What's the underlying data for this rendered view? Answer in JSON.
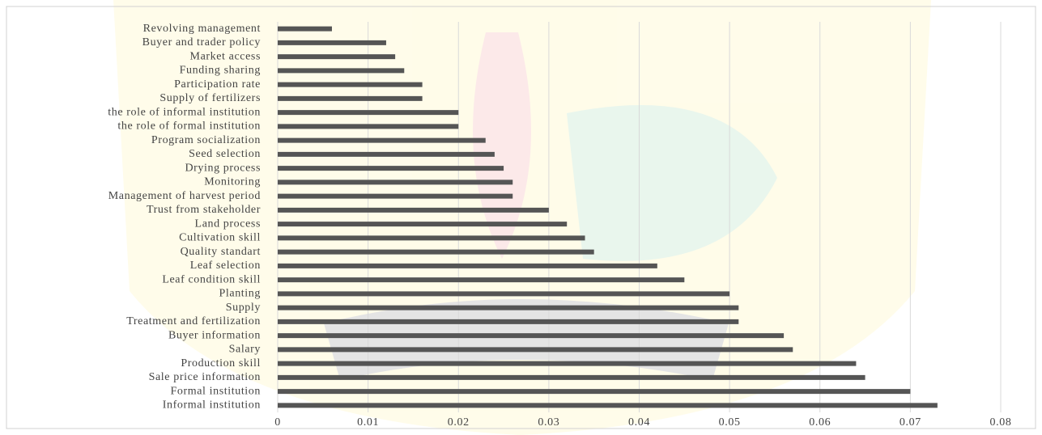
{
  "chart_data": {
    "type": "bar",
    "orientation": "horizontal",
    "categories": [
      "Revolving management",
      "Buyer and trader policy",
      "Market access",
      "Funding sharing",
      "Participation rate",
      "Supply of fertilizers",
      "the role of informal institution",
      "the role of formal institution",
      "Program socialization",
      "Seed selection",
      "Drying process",
      "Monitoring",
      "Management of harvest period",
      "Trust from stakeholder",
      "Land process",
      "Cultivation skill",
      "Quality standart",
      "Leaf selection",
      "Leaf condition skill",
      "Planting",
      "Supply",
      "Treatment and fertilization",
      "Buyer information",
      "Salary",
      "Production skill",
      "Sale price information",
      "Formal institution",
      "Informal institution"
    ],
    "values": [
      0.006,
      0.012,
      0.013,
      0.014,
      0.016,
      0.016,
      0.02,
      0.02,
      0.023,
      0.024,
      0.025,
      0.026,
      0.026,
      0.03,
      0.032,
      0.034,
      0.035,
      0.042,
      0.045,
      0.05,
      0.051,
      0.051,
      0.056,
      0.057,
      0.064,
      0.065,
      0.07,
      0.073
    ],
    "color": "#555555",
    "xlim": [
      0,
      0.08
    ],
    "xticks": [
      0,
      0.01,
      0.02,
      0.03,
      0.04,
      0.05,
      0.06,
      0.07,
      0.08
    ],
    "grid": true
  }
}
